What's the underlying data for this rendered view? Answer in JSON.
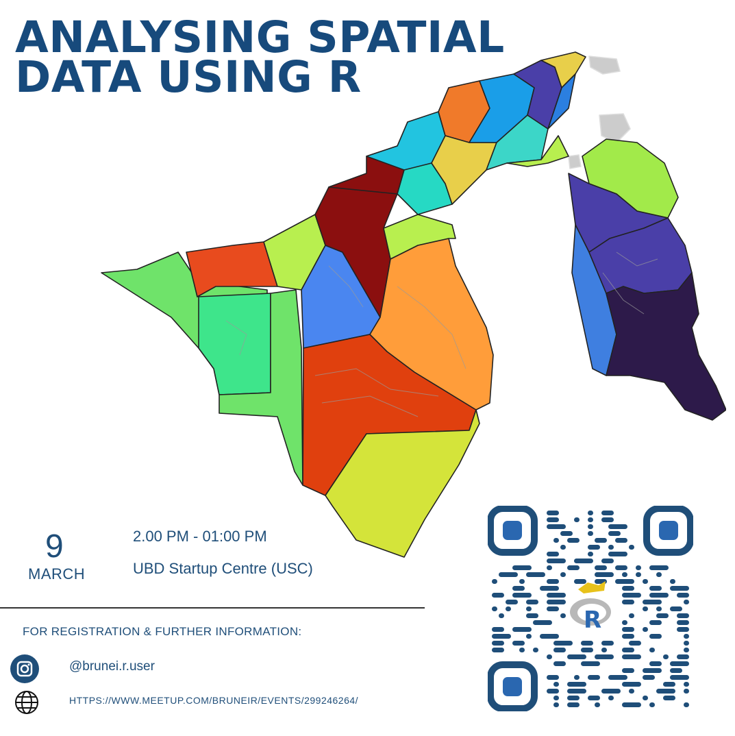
{
  "title": {
    "line1": "ANALYSING SPATIAL",
    "line2": "DATA USING R"
  },
  "event": {
    "day": "9",
    "month": "MARCH",
    "time": "2.00 PM - 01:00 PM",
    "venue": "UBD Startup Centre (USC)"
  },
  "registration": {
    "heading": "FOR REGISTRATION & FURTHER INFORMATION:",
    "instagram_handle": "@brunei.r.user",
    "instagram_icon": "instagram-icon",
    "website_url": "HTTPS://WWW.MEETUP.COM/BRUNEIR/EVENTS/299246264/",
    "website_icon": "globe-icon"
  },
  "qr": {
    "logo_letter": "R",
    "color": "#1f4e79"
  },
  "colors": {
    "primary": "#174a7c"
  }
}
